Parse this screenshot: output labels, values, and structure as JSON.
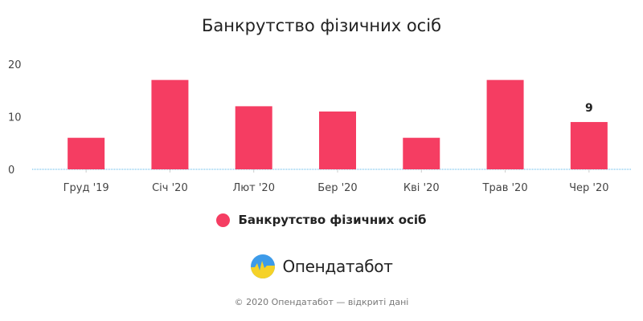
{
  "chart_data": {
    "type": "bar",
    "title": "Банкрутство фізичних осіб",
    "categories": [
      "Груд '19",
      "Січ '20",
      "Лют '20",
      "Бер '20",
      "Кві '20",
      "Трав '20",
      "Чер '20"
    ],
    "series": [
      {
        "name": "Банкрутство фізичних осіб",
        "values": [
          6,
          17,
          12,
          11,
          6,
          17,
          9
        ],
        "color": "#f53d62"
      }
    ],
    "data_labels": [
      {
        "category": "Чер '20",
        "text": "9"
      }
    ],
    "yticks": [
      "0",
      "10",
      "20"
    ],
    "ylim": [
      0,
      20
    ],
    "grid": false,
    "legend_position": "bottom-center",
    "baseline_color": "#4fb3e8"
  },
  "brand": {
    "name": "Опендатабот",
    "logo_icon": "opendatabot-logo-icon",
    "logo_colors": {
      "sky": "#3d9be9",
      "ground": "#f5d228"
    }
  },
  "footer": {
    "text": "© 2020 Опендатабот — відкриті дані"
  }
}
